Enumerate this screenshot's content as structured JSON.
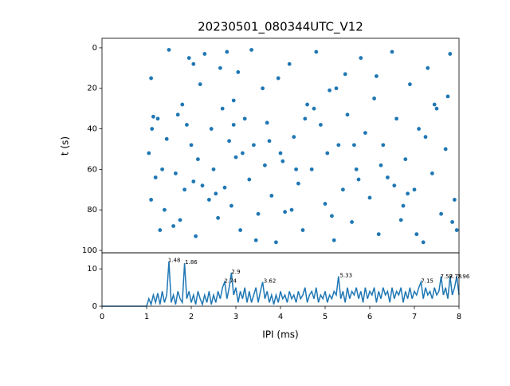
{
  "chart_data": [
    {
      "type": "scatter",
      "title": "20230501_080344UTC_V12",
      "y_label": "t (s)",
      "color": "#1f77b4",
      "ylim": [
        101.2,
        -4.7
      ],
      "yticks": [
        0,
        20,
        40,
        60,
        80,
        100
      ],
      "xlim": [
        0,
        8
      ],
      "x": [
        1.1,
        1.15,
        1.2,
        1.1,
        1.3,
        1.25,
        1.05,
        1.4,
        1.5,
        1.45,
        1.7,
        1.65,
        1.8,
        1.75,
        1.9,
        1.85,
        1.95,
        2.0,
        2.05,
        2.1,
        2.2,
        2.15,
        2.3,
        2.4,
        2.45,
        2.5,
        2.6,
        2.7,
        2.75,
        2.8,
        2.85,
        2.9,
        2.95,
        3.0,
        3.05,
        3.1,
        3.2,
        3.3,
        3.35,
        3.4,
        3.5,
        3.6,
        3.65,
        3.7,
        3.8,
        3.9,
        3.95,
        4.0,
        4.1,
        4.2,
        4.3,
        4.4,
        4.5,
        4.6,
        4.7,
        4.8,
        4.9,
        5.0,
        5.05,
        5.1,
        5.2,
        5.3,
        5.4,
        5.45,
        5.5,
        5.6,
        5.7,
        5.8,
        5.9,
        6.0,
        6.1,
        6.2,
        6.3,
        6.4,
        6.5,
        6.6,
        6.7,
        6.8,
        6.9,
        7.0,
        7.1,
        7.2,
        7.3,
        7.4,
        7.5,
        7.6,
        7.7,
        7.8,
        7.9,
        7.95,
        1.12,
        1.6,
        2.25,
        2.65,
        3.15,
        3.75,
        4.25,
        4.75,
        5.25,
        5.75,
        6.25,
        6.75,
        7.25,
        7.75,
        1.35,
        2.05,
        2.55,
        3.45,
        4.05,
        4.55,
        5.15,
        5.65,
        6.15,
        6.55,
        7.05,
        7.45,
        7.85,
        2.95,
        4.35,
        6.85
      ],
      "y": [
        15,
        34,
        64,
        75,
        90,
        35,
        52,
        80,
        1,
        45,
        33,
        62,
        28,
        85,
        38,
        70,
        5,
        48,
        66,
        93,
        18,
        55,
        3,
        75,
        40,
        60,
        84,
        30,
        69,
        2,
        46,
        78,
        26,
        54,
        12,
        90,
        35,
        65,
        1,
        48,
        82,
        20,
        58,
        37,
        73,
        96,
        15,
        52,
        81,
        8,
        44,
        67,
        90,
        28,
        60,
        2,
        38,
        77,
        52,
        21,
        95,
        48,
        70,
        13,
        33,
        86,
        60,
        5,
        42,
        74,
        25,
        92,
        48,
        64,
        2,
        35,
        85,
        55,
        18,
        70,
        40,
        96,
        10,
        62,
        30,
        82,
        50,
        3,
        75,
        90,
        40,
        88,
        68,
        10,
        52,
        46,
        80,
        30,
        20,
        65,
        58,
        78,
        44,
        24,
        60,
        8,
        72,
        95,
        56,
        35,
        83,
        48,
        14,
        68,
        92,
        28,
        86,
        38,
        60,
        72
      ]
    },
    {
      "type": "line",
      "x_label": "IPI (ms)",
      "color": "#1f77b4",
      "xlim": [
        0,
        8
      ],
      "xticks": [
        0,
        1,
        2,
        3,
        4,
        5,
        6,
        7,
        8
      ],
      "ylim": [
        0,
        14.3
      ],
      "yticks": [
        0,
        10
      ],
      "x": [
        0,
        1.0,
        1.05,
        1.1,
        1.15,
        1.2,
        1.25,
        1.3,
        1.35,
        1.4,
        1.45,
        1.5,
        1.55,
        1.6,
        1.65,
        1.7,
        1.75,
        1.8,
        1.85,
        1.9,
        1.95,
        2.0,
        2.05,
        2.1,
        2.15,
        2.2,
        2.25,
        2.3,
        2.35,
        2.4,
        2.45,
        2.5,
        2.55,
        2.6,
        2.65,
        2.7,
        2.75,
        2.8,
        2.85,
        2.9,
        2.95,
        3.0,
        3.05,
        3.1,
        3.15,
        3.2,
        3.25,
        3.3,
        3.35,
        3.4,
        3.45,
        3.5,
        3.55,
        3.6,
        3.65,
        3.7,
        3.75,
        3.8,
        3.85,
        3.9,
        3.95,
        4.0,
        4.05,
        4.1,
        4.15,
        4.2,
        4.25,
        4.3,
        4.35,
        4.4,
        4.45,
        4.5,
        4.55,
        4.6,
        4.65,
        4.7,
        4.75,
        4.8,
        4.85,
        4.9,
        4.95,
        5.0,
        5.05,
        5.1,
        5.15,
        5.2,
        5.25,
        5.3,
        5.35,
        5.4,
        5.45,
        5.5,
        5.55,
        5.6,
        5.65,
        5.7,
        5.75,
        5.8,
        5.85,
        5.9,
        5.95,
        6.0,
        6.05,
        6.1,
        6.15,
        6.2,
        6.25,
        6.3,
        6.35,
        6.4,
        6.45,
        6.5,
        6.55,
        6.6,
        6.65,
        6.7,
        6.75,
        6.8,
        6.85,
        6.9,
        6.95,
        7.0,
        7.05,
        7.1,
        7.15,
        7.2,
        7.25,
        7.3,
        7.35,
        7.4,
        7.45,
        7.5,
        7.55,
        7.6,
        7.65,
        7.7,
        7.75,
        7.8,
        7.85,
        7.9,
        7.95,
        8.0
      ],
      "y": [
        0,
        0,
        2,
        0.5,
        3,
        1,
        3.5,
        0.5,
        4,
        1,
        3,
        12,
        1,
        3,
        0.5,
        4,
        2,
        1,
        11.5,
        2,
        4,
        1,
        3,
        0.5,
        4,
        2,
        0.5,
        3,
        1,
        4,
        0.5,
        3,
        1,
        4,
        2,
        5,
        6.5,
        2,
        5,
        9,
        3,
        5,
        1,
        4,
        2,
        5,
        1,
        4,
        1,
        3,
        5,
        1,
        4,
        6.5,
        2,
        4,
        1,
        3,
        0.5,
        3,
        1,
        4,
        2,
        3,
        1,
        4,
        2,
        3,
        1,
        4,
        2,
        3,
        5,
        1,
        3,
        4,
        2,
        5,
        1,
        3,
        2,
        4,
        1,
        3,
        2,
        4,
        3,
        8,
        2,
        4,
        1,
        5,
        2,
        4,
        3,
        5,
        2,
        4,
        1,
        5,
        2,
        4,
        3,
        5,
        1,
        4,
        2,
        5,
        3,
        4,
        1,
        5,
        2,
        4,
        3,
        5,
        1,
        4,
        2,
        5,
        2,
        4,
        3,
        5,
        6.5,
        2,
        5,
        3,
        4,
        2,
        5,
        3,
        4,
        8,
        3,
        5,
        2,
        8,
        3,
        5,
        8,
        3
      ],
      "annotations": [
        {
          "text": "1.48",
          "x": 1.48,
          "y": 12.3
        },
        {
          "text": "1.86",
          "x": 1.86,
          "y": 11.7
        },
        {
          "text": "2.74",
          "x": 2.74,
          "y": 6.7
        },
        {
          "text": "2.9",
          "x": 2.9,
          "y": 9.2
        },
        {
          "text": "3.62",
          "x": 3.62,
          "y": 6.7
        },
        {
          "text": "5.33",
          "x": 5.33,
          "y": 8.2
        },
        {
          "text": "7.15",
          "x": 7.15,
          "y": 6.7
        },
        {
          "text": "7.58",
          "x": 7.58,
          "y": 7.9
        },
        {
          "text": "7.78",
          "x": 7.78,
          "y": 7.9
        },
        {
          "text": "7.96",
          "x": 7.96,
          "y": 7.9
        }
      ]
    }
  ]
}
